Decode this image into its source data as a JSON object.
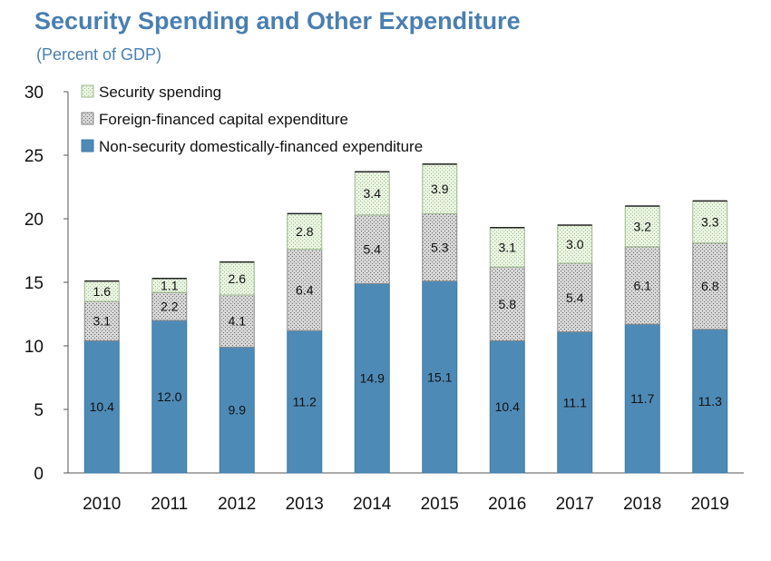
{
  "title": "Security Spending and Other Expenditure",
  "subtitle": "(Percent of GDP)",
  "colors": {
    "security": "#e6f2dc",
    "foreign": "#d9d9d9",
    "domestic": "#4e8ab6",
    "title": "#4a7fb0"
  },
  "chart_data": {
    "type": "bar",
    "stacked": true,
    "categories": [
      "2010",
      "2011",
      "2012",
      "2013",
      "2014",
      "2015",
      "2016",
      "2017",
      "2018",
      "2019"
    ],
    "series": [
      {
        "name": "Non-security domestically-financed expenditure",
        "values": [
          10.4,
          12.0,
          9.9,
          11.2,
          14.9,
          15.1,
          10.4,
          11.1,
          11.7,
          11.3
        ],
        "labels": [
          "10.4",
          "12.0",
          "9.9",
          "11.2",
          "14.9",
          "15.1",
          "10.4",
          "11.1",
          "11.7",
          "11.3"
        ]
      },
      {
        "name": "Foreign-financed capital expenditure",
        "values": [
          3.1,
          2.2,
          4.1,
          6.4,
          5.4,
          5.3,
          5.8,
          5.4,
          6.1,
          6.8
        ],
        "labels": [
          "3.1",
          "2.2",
          "4.1",
          "6.4",
          "5.4",
          "5.3",
          "5.8",
          "5.4",
          "6.1",
          "6.8"
        ]
      },
      {
        "name": "Security spending",
        "values": [
          1.6,
          1.1,
          2.6,
          2.8,
          3.4,
          3.9,
          3.1,
          3.0,
          3.2,
          3.3
        ],
        "labels": [
          "1.6",
          "1.1",
          "2.6",
          "2.8",
          "3.4",
          "3.9",
          "3.1",
          "3.0",
          "3.2",
          "3.3"
        ]
      }
    ],
    "legend_order": [
      "Security spending",
      "Foreign-financed capital expenditure",
      "Non-security domestically-financed expenditure"
    ],
    "yticks": [
      "0",
      "5",
      "10",
      "15",
      "20",
      "25",
      "30"
    ],
    "ylim": [
      0,
      30
    ],
    "grid": false,
    "legend_position": "top-left"
  }
}
